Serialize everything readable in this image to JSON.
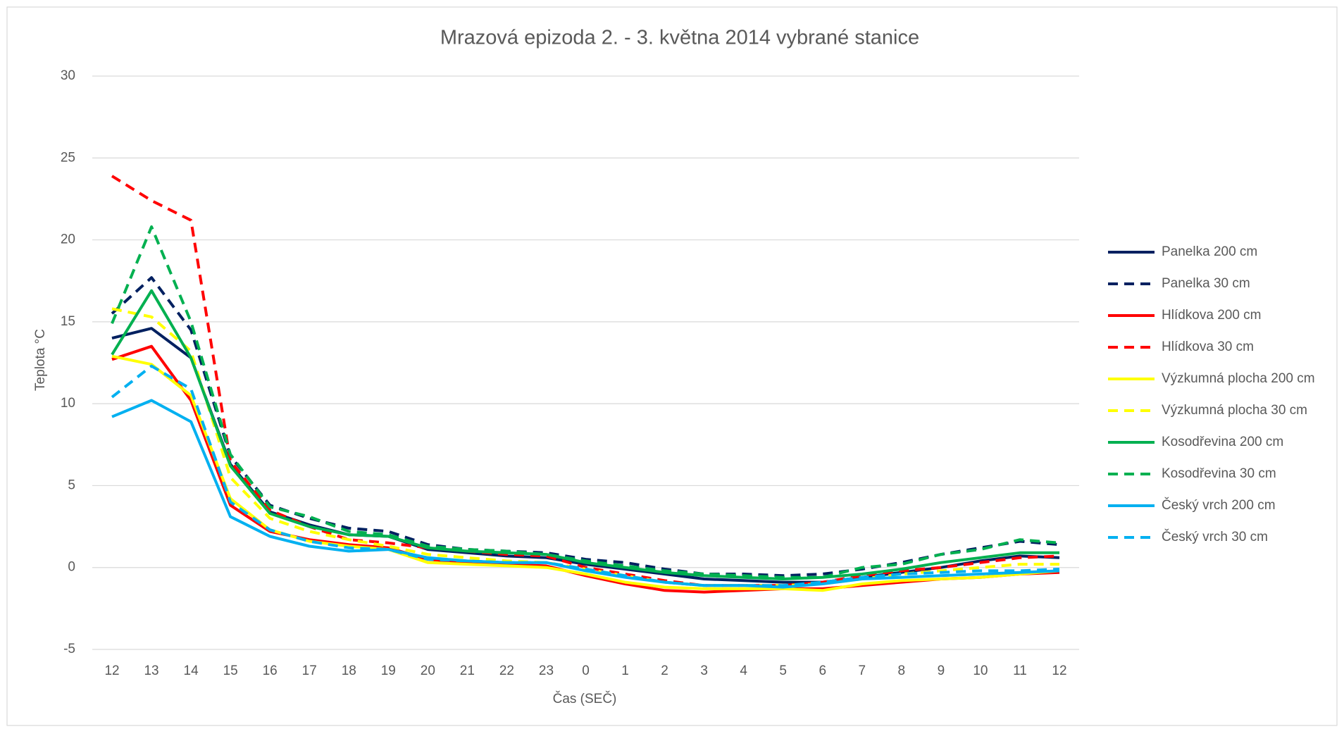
{
  "chart_data": {
    "type": "line",
    "title": "Mrazová epizoda 2. - 3. května 2014 vybrané stanice",
    "x_label": "Čas (SEČ)",
    "y_label": "Teplota °C",
    "categories": [
      "12",
      "13",
      "14",
      "15",
      "16",
      "17",
      "18",
      "19",
      "20",
      "21",
      "22",
      "23",
      "0",
      "1",
      "2",
      "3",
      "4",
      "5",
      "6",
      "7",
      "8",
      "9",
      "10",
      "11",
      "12"
    ],
    "ylim": [
      -5,
      30
    ],
    "yticks": [
      -5,
      0,
      5,
      10,
      15,
      20,
      25,
      30
    ],
    "grid": true,
    "legend": "right",
    "series": [
      {
        "name": "Panelka 200 cm",
        "color": "#002060",
        "dashed": false,
        "values": [
          14,
          14.6,
          12.8,
          6.3,
          3.4,
          2.6,
          2.0,
          1.9,
          1.1,
          0.9,
          0.7,
          0.6,
          0.2,
          -0.1,
          -0.4,
          -0.7,
          -0.8,
          -0.9,
          -0.9,
          -0.6,
          -0.3,
          0.0,
          0.4,
          0.7,
          0.6
        ]
      },
      {
        "name": "Panelka 30 cm",
        "color": "#002060",
        "dashed": true,
        "values": [
          15.5,
          17.7,
          14.5,
          6.8,
          3.8,
          3.0,
          2.4,
          2.2,
          1.4,
          1.1,
          1.0,
          0.9,
          0.5,
          0.3,
          -0.1,
          -0.4,
          -0.4,
          -0.5,
          -0.4,
          -0.1,
          0.3,
          0.8,
          1.2,
          1.6,
          1.4
        ]
      },
      {
        "name": "Hlídkova 200 cm",
        "color": "#ff0000",
        "dashed": false,
        "values": [
          12.7,
          13.5,
          10.2,
          3.8,
          2.2,
          1.7,
          1.4,
          1.2,
          0.5,
          0.3,
          0.2,
          0.1,
          -0.5,
          -1.0,
          -1.4,
          -1.5,
          -1.4,
          -1.3,
          -1.3,
          -1.1,
          -0.9,
          -0.7,
          -0.6,
          -0.4,
          -0.3
        ]
      },
      {
        "name": "Hlídkova 30 cm",
        "color": "#ff0000",
        "dashed": true,
        "values": [
          23.9,
          22.4,
          21.2,
          6.5,
          3.5,
          2.5,
          1.7,
          1.5,
          1.2,
          1.0,
          0.8,
          0.7,
          0.0,
          -0.4,
          -0.8,
          -1.1,
          -1.1,
          -1.1,
          -0.9,
          -0.5,
          -0.2,
          0.0,
          0.3,
          0.6,
          0.7
        ]
      },
      {
        "name": "Výzkumná plocha 200 cm",
        "color": "#ffff00",
        "dashed": false,
        "values": [
          12.9,
          12.4,
          10.5,
          4.2,
          2.3,
          1.6,
          1.3,
          1.1,
          0.3,
          0.2,
          0.1,
          0.0,
          -0.4,
          -0.9,
          -1.2,
          -1.3,
          -1.3,
          -1.3,
          -1.4,
          -1.0,
          -0.8,
          -0.7,
          -0.6,
          -0.4,
          -0.2
        ]
      },
      {
        "name": "Výzkumná plocha 30 cm",
        "color": "#ffff00",
        "dashed": true,
        "values": [
          15.8,
          15.3,
          13.2,
          5.5,
          3.0,
          2.2,
          1.7,
          1.3,
          0.8,
          0.6,
          0.4,
          0.3,
          -0.1,
          -0.5,
          -0.9,
          -1.1,
          -1.1,
          -1.1,
          -1.0,
          -0.7,
          -0.4,
          -0.2,
          0.0,
          0.2,
          0.2
        ]
      },
      {
        "name": "Kosodřevina 200 cm",
        "color": "#00b050",
        "dashed": false,
        "values": [
          13.0,
          16.9,
          12.8,
          6.2,
          3.3,
          2.5,
          2.0,
          1.9,
          1.2,
          1.0,
          0.9,
          0.8,
          0.3,
          0.0,
          -0.3,
          -0.5,
          -0.6,
          -0.7,
          -0.6,
          -0.4,
          -0.1,
          0.3,
          0.6,
          0.9,
          0.9
        ]
      },
      {
        "name": "Kosodřevina 30 cm",
        "color": "#00b050",
        "dashed": true,
        "values": [
          14.9,
          20.8,
          15.0,
          6.9,
          3.7,
          3.1,
          2.2,
          2.0,
          1.3,
          1.1,
          1.0,
          0.8,
          0.4,
          0.1,
          -0.2,
          -0.4,
          -0.5,
          -0.6,
          -0.6,
          0.0,
          0.2,
          0.8,
          1.1,
          1.7,
          1.5
        ]
      },
      {
        "name": "Český vrch 200 cm",
        "color": "#00b0f0",
        "dashed": false,
        "values": [
          9.2,
          10.2,
          8.9,
          3.1,
          1.9,
          1.3,
          1.0,
          1.1,
          0.6,
          0.4,
          0.3,
          0.3,
          -0.2,
          -0.6,
          -0.9,
          -1.1,
          -1.1,
          -1.2,
          -1.0,
          -0.7,
          -0.6,
          -0.5,
          -0.4,
          -0.3,
          -0.2
        ]
      },
      {
        "name": "Český vrch 30 cm",
        "color": "#00b0f0",
        "dashed": true,
        "values": [
          10.4,
          12.3,
          10.9,
          4.0,
          2.3,
          1.6,
          1.2,
          1.1,
          0.5,
          0.4,
          0.3,
          0.3,
          -0.1,
          -0.5,
          -0.9,
          -1.1,
          -1.1,
          -1.1,
          -0.9,
          -0.6,
          -0.4,
          -0.3,
          -0.2,
          -0.2,
          -0.1
        ]
      }
    ]
  }
}
